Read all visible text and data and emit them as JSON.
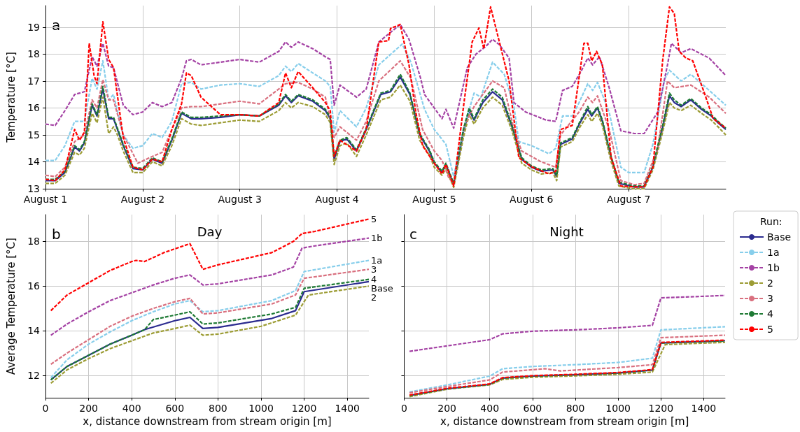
{
  "chart_data": [
    {
      "type": "line",
      "ylabel": "Temperature [°C]",
      "annotations": [
        "a"
      ],
      "marker": "none",
      "grid": true,
      "legend": false,
      "xlim": [
        "--08-01T00:00",
        "--08-08T00:00"
      ],
      "xticks": [
        {
          "value": "--08-01",
          "label": "August 1"
        },
        {
          "value": "--08-02",
          "label": "August 2"
        },
        {
          "value": "--08-03",
          "label": "August 3"
        },
        {
          "value": "--08-04",
          "label": "August 4"
        },
        {
          "value": "--08-05",
          "label": "August 5"
        },
        {
          "value": "--08-06",
          "label": "August 6"
        },
        {
          "value": "--08-07",
          "label": "August 7"
        }
      ],
      "ylim": [
        13,
        19.8
      ],
      "yticks": [
        13,
        14,
        15,
        16,
        17,
        18,
        19
      ],
      "series": [
        {
          "color": "#2b2b8f",
          "line_style": "solid",
          "x": [
            "--08-01T00:00",
            "--08-01T02:24",
            "--08-01T04:48",
            "--08-01T07:12",
            "--08-01T08:24",
            "--08-01T09:36",
            "--08-01T11:31",
            "--08-01T12:43",
            "--08-01T14:10",
            "--08-01T15:36",
            "--08-01T16:48",
            "--08-01T17:46",
            "--08-01T19:12",
            "--08-01T21:36",
            "--08-02T00:00",
            "--08-02T02:24",
            "--08-02T04:48",
            "--08-02T07:12",
            "--08-02T09:36",
            "--08-02T12:00",
            "--08-02T14:24",
            "--08-02T19:12",
            "--08-03T00:00",
            "--08-03T04:48",
            "--08-03T09:36",
            "--08-03T11:17",
            "--08-03T12:43",
            "--08-03T14:24",
            "--08-03T18:00",
            "--08-03T21:07",
            "--08-03T22:19",
            "--08-03T23:17",
            "--08-04T00:43",
            "--08-04T02:24",
            "--08-04T04:48",
            "--08-04T07:12",
            "--08-04T10:48",
            "--08-04T13:12",
            "--08-04T15:36",
            "--08-04T18:00",
            "--08-04T20:24",
            "--08-04T22:48",
            "--08-05T00:00",
            "--08-05T01:55",
            "--08-05T02:53",
            "--08-05T04:48",
            "--08-05T07:12",
            "--08-05T08:38",
            "--08-05T09:50",
            "--08-05T12:00",
            "--08-05T14:24",
            "--08-05T16:48",
            "--08-05T19:12",
            "--08-05T21:36",
            "--08-06T00:00",
            "--08-06T02:24",
            "--08-06T05:17",
            "--08-06T06:14",
            "--08-06T07:12",
            "--08-06T10:05",
            "--08-06T12:00",
            "--08-06T13:55",
            "--08-06T14:53",
            "--08-06T16:19",
            "--08-06T17:31",
            "--08-06T19:41",
            "--08-06T21:36",
            "--08-07T01:12",
            "--08-07T03:50",
            "--08-07T06:00",
            "--08-07T08:24",
            "--08-07T10:05",
            "--08-07T11:17",
            "--08-07T12:58",
            "--08-07T15:22",
            "--08-07T18:00",
            "--08-07T20:24",
            "--08-07T22:05",
            "--08-08T00:00"
          ],
          "values": [
            13.3,
            13.3,
            13.6,
            14.55,
            14.4,
            14.7,
            16.1,
            15.7,
            16.7,
            15.6,
            15.6,
            15.2,
            14.6,
            13.75,
            13.7,
            14.1,
            13.95,
            14.8,
            15.8,
            15.6,
            15.6,
            15.65,
            15.75,
            15.7,
            16.1,
            16.45,
            16.2,
            16.45,
            16.25,
            15.9,
            15.6,
            14.1,
            14.75,
            14.85,
            14.4,
            15.2,
            16.5,
            16.6,
            17.15,
            16.5,
            15.0,
            14.4,
            13.95,
            13.6,
            13.9,
            13.15,
            15.1,
            15.9,
            15.55,
            16.2,
            16.6,
            16.3,
            15.3,
            14.1,
            13.8,
            13.65,
            13.7,
            13.45,
            14.65,
            14.85,
            15.45,
            15.95,
            15.7,
            16.0,
            15.5,
            14.15,
            13.2,
            13.07,
            13.07,
            13.8,
            15.25,
            16.45,
            16.2,
            16.05,
            16.3,
            15.95,
            15.7,
            15.45,
            15.2
          ]
        },
        {
          "color": "#87ceeb",
          "line_style": "dashed",
          "x": [
            "--08-01T00:00",
            "--08-01T02:24",
            "--08-01T04:48",
            "--08-01T07:12",
            "--08-01T09:36",
            "--08-01T11:31",
            "--08-01T12:43",
            "--08-01T14:10",
            "--08-01T15:36",
            "--08-01T16:48",
            "--08-01T19:12",
            "--08-01T21:36",
            "--08-02T00:00",
            "--08-02T02:24",
            "--08-02T04:48",
            "--08-02T07:12",
            "--08-02T09:36",
            "--08-02T12:00",
            "--08-02T14:24",
            "--08-02T19:12",
            "--08-03T00:00",
            "--08-03T04:48",
            "--08-03T09:36",
            "--08-03T11:17",
            "--08-03T12:43",
            "--08-03T14:24",
            "--08-03T18:00",
            "--08-03T21:07",
            "--08-03T22:19",
            "--08-03T23:17",
            "--08-04T00:43",
            "--08-04T04:48",
            "--08-04T07:12",
            "--08-04T10:19",
            "--08-04T16:05",
            "--08-04T18:14",
            "--08-04T21:36",
            "--08-05T00:00",
            "--08-05T02:53",
            "--08-05T04:48",
            "--08-05T07:12",
            "--08-05T09:50",
            "--08-05T11:31",
            "--08-05T14:24",
            "--08-05T17:17",
            "--08-05T19:41",
            "--08-05T20:53",
            "--08-06T00:00",
            "--08-06T04:19",
            "--08-06T06:00",
            "--08-06T07:41",
            "--08-06T10:05",
            "--08-06T11:46",
            "--08-06T13:55",
            "--08-06T15:07",
            "--08-06T16:19",
            "--08-06T19:12",
            "--08-06T22:05",
            "--08-07T00:00",
            "--08-07T03:50",
            "--08-07T06:00",
            "--08-07T08:53",
            "--08-07T10:05",
            "--08-07T12:58",
            "--08-07T15:22",
            "--08-07T19:55",
            "--08-08T00:00"
          ],
          "values": [
            14.05,
            14.05,
            14.6,
            15.5,
            15.5,
            17.1,
            16.7,
            17.75,
            16.3,
            16.5,
            15.0,
            14.5,
            14.6,
            15.05,
            14.9,
            15.5,
            16.9,
            16.95,
            16.7,
            16.85,
            16.9,
            16.8,
            17.2,
            17.55,
            17.35,
            17.65,
            17.3,
            17.0,
            16.8,
            15.1,
            15.9,
            15.3,
            16.0,
            17.6,
            18.37,
            17.7,
            15.95,
            15.2,
            14.65,
            13.45,
            15.2,
            16.55,
            16.4,
            17.7,
            17.25,
            16.05,
            14.75,
            14.6,
            14.3,
            14.5,
            15.7,
            15.7,
            16.2,
            16.9,
            16.65,
            16.95,
            15.85,
            13.8,
            13.6,
            13.6,
            14.65,
            17.07,
            17.4,
            17.0,
            17.25,
            16.65,
            16.1
          ]
        },
        {
          "color": "#a442a4",
          "line_style": "dashed",
          "x": [
            "--08-01T00:00",
            "--08-01T02:24",
            "--08-01T04:48",
            "--08-01T07:12",
            "--08-01T09:36",
            "--08-01T11:31",
            "--08-01T12:43",
            "--08-01T14:10",
            "--08-01T15:36",
            "--08-01T16:48",
            "--08-01T19:12",
            "--08-01T21:36",
            "--08-02T00:00",
            "--08-02T02:24",
            "--08-02T04:48",
            "--08-02T07:12",
            "--08-02T09:36",
            "--08-02T10:48",
            "--08-02T12:00",
            "--08-02T14:24",
            "--08-02T19:12",
            "--08-03T00:00",
            "--08-03T04:48",
            "--08-03T09:36",
            "--08-03T11:17",
            "--08-03T12:43",
            "--08-03T14:24",
            "--08-03T18:00",
            "--08-03T21:07",
            "--08-03T22:19",
            "--08-03T23:17",
            "--08-04T00:43",
            "--08-04T04:48",
            "--08-04T07:12",
            "--08-04T10:19",
            "--08-04T15:36",
            "--08-04T17:46",
            "--08-04T20:38",
            "--08-04T21:36",
            "--08-05T00:00",
            "--08-05T01:55",
            "--08-05T02:53",
            "--08-05T04:48",
            "--08-05T08:10",
            "--08-05T10:19",
            "--08-05T12:43",
            "--08-05T14:24",
            "--08-05T16:05",
            "--08-05T18:29",
            "--08-05T19:41",
            "--08-05T22:34",
            "--08-06T03:36",
            "--08-06T06:00",
            "--08-06T07:41",
            "--08-06T10:05",
            "--08-06T12:14",
            "--08-06T13:55",
            "--08-06T15:07",
            "--08-06T16:48",
            "--08-06T19:12",
            "--08-06T22:05",
            "--08-07T01:26",
            "--08-07T03:50",
            "--08-07T07:12",
            "--08-07T09:36",
            "--08-07T10:34",
            "--08-07T12:58",
            "--08-07T15:22",
            "--08-07T19:55",
            "--08-08T00:00"
          ],
          "values": [
            15.4,
            15.35,
            15.9,
            16.5,
            16.6,
            17.9,
            17.55,
            18.4,
            17.55,
            17.5,
            16.1,
            15.75,
            15.85,
            16.2,
            16.05,
            16.2,
            17.1,
            17.75,
            17.8,
            17.6,
            17.7,
            17.8,
            17.7,
            18.1,
            18.45,
            18.25,
            18.45,
            18.2,
            17.9,
            17.8,
            16.1,
            16.85,
            16.4,
            16.7,
            18.45,
            19.1,
            18.55,
            17.1,
            16.5,
            16.0,
            15.6,
            15.95,
            15.25,
            17.5,
            18.0,
            18.28,
            18.55,
            18.35,
            17.85,
            16.2,
            15.85,
            15.55,
            15.5,
            16.65,
            16.8,
            17.35,
            17.85,
            17.6,
            17.9,
            16.75,
            15.15,
            15.05,
            15.05,
            15.85,
            17.6,
            18.4,
            18.05,
            18.2,
            17.85,
            17.2
          ]
        },
        {
          "color": "#9c9c34",
          "line_style": "dashed",
          "x": [
            "--08-01T00:00",
            "--08-01T02:24",
            "--08-01T04:48",
            "--08-01T07:12",
            "--08-01T08:24",
            "--08-01T09:36",
            "--08-01T11:31",
            "--08-01T12:43",
            "--08-01T14:10",
            "--08-01T15:36",
            "--08-01T16:48",
            "--08-01T17:46",
            "--08-01T19:12",
            "--08-01T21:36",
            "--08-02T00:00",
            "--08-02T02:24",
            "--08-02T04:48",
            "--08-02T07:12",
            "--08-02T09:36",
            "--08-02T12:00",
            "--08-02T14:24",
            "--08-02T19:12",
            "--08-03T00:00",
            "--08-03T04:48",
            "--08-03T09:36",
            "--08-03T11:17",
            "--08-03T12:43",
            "--08-03T14:24",
            "--08-03T18:00",
            "--08-03T21:07",
            "--08-03T22:19",
            "--08-03T23:17",
            "--08-04T00:43",
            "--08-04T02:24",
            "--08-04T04:48",
            "--08-04T07:12",
            "--08-04T10:48",
            "--08-04T13:12",
            "--08-04T15:36",
            "--08-04T18:00",
            "--08-04T20:24",
            "--08-04T22:48",
            "--08-05T00:00",
            "--08-05T01:55",
            "--08-05T02:53",
            "--08-05T04:48",
            "--08-05T07:12",
            "--08-05T08:38",
            "--08-05T09:50",
            "--08-05T12:00",
            "--08-05T14:24",
            "--08-05T16:48",
            "--08-05T19:12",
            "--08-05T21:36",
            "--08-06T00:00",
            "--08-06T02:24",
            "--08-06T05:17",
            "--08-06T06:14",
            "--08-06T07:12",
            "--08-06T10:05",
            "--08-06T12:00",
            "--08-06T13:55",
            "--08-06T14:53",
            "--08-06T16:19",
            "--08-06T17:31",
            "--08-06T19:41",
            "--08-06T21:36",
            "--08-07T01:12",
            "--08-07T03:50",
            "--08-07T06:00",
            "--08-07T08:24",
            "--08-07T10:05",
            "--08-07T11:17",
            "--08-07T12:58",
            "--08-07T15:22",
            "--08-07T18:00",
            "--08-07T20:24",
            "--08-07T22:05",
            "--08-08T00:00"
          ],
          "values": [
            13.2,
            13.2,
            13.5,
            14.35,
            14.25,
            14.5,
            15.8,
            15.45,
            16.4,
            15.05,
            15.3,
            15.0,
            14.4,
            13.6,
            13.6,
            14.0,
            13.85,
            14.6,
            15.6,
            15.4,
            15.35,
            15.45,
            15.55,
            15.5,
            15.9,
            16.2,
            16.0,
            16.2,
            16.05,
            15.75,
            15.45,
            13.9,
            14.6,
            14.7,
            14.2,
            15.0,
            16.3,
            16.4,
            16.85,
            16.25,
            14.8,
            14.25,
            13.8,
            13.5,
            13.75,
            13.05,
            14.9,
            15.75,
            15.4,
            16.0,
            16.4,
            16.1,
            15.15,
            13.95,
            13.7,
            13.55,
            13.6,
            13.3,
            14.55,
            14.75,
            15.3,
            15.75,
            15.5,
            15.8,
            15.35,
            14.0,
            13.1,
            13.0,
            13.0,
            13.7,
            15.1,
            16.2,
            16.0,
            15.9,
            16.1,
            15.8,
            15.55,
            15.3,
            15.0
          ]
        },
        {
          "color": "#d9707f",
          "line_style": "dashed",
          "x": [
            "--08-01T00:00",
            "--08-01T02:24",
            "--08-01T04:48",
            "--08-01T07:12",
            "--08-01T09:36",
            "--08-01T11:31",
            "--08-01T12:43",
            "--08-01T14:10",
            "--08-01T15:36",
            "--08-01T16:48",
            "--08-01T19:12",
            "--08-01T22:48",
            "--08-02T02:24",
            "--08-02T04:48",
            "--08-02T07:12",
            "--08-02T09:36",
            "--08-02T12:00",
            "--08-02T14:24",
            "--08-03T00:00",
            "--08-03T04:48",
            "--08-03T09:36",
            "--08-03T11:17",
            "--08-03T14:24",
            "--08-03T18:00",
            "--08-03T21:07",
            "--08-03T23:17",
            "--08-04T00:43",
            "--08-04T04:48",
            "--08-04T07:12",
            "--08-04T10:19",
            "--08-04T15:36",
            "--08-04T18:14",
            "--08-04T21:07",
            "--08-05T00:00",
            "--08-05T01:55",
            "--08-05T03:36",
            "--08-05T04:48",
            "--08-05T07:26",
            "--08-05T09:50",
            "--08-05T14:24",
            "--08-05T17:17",
            "--08-05T19:41",
            "--08-05T21:36",
            "--08-06T02:24",
            "--08-06T06:00",
            "--08-06T07:12",
            "--08-06T11:46",
            "--08-06T13:55",
            "--08-06T15:07",
            "--08-06T16:19",
            "--08-06T19:12",
            "--08-06T22:05",
            "--08-07T01:26",
            "--08-07T03:50",
            "--08-07T07:12",
            "--08-07T09:36",
            "--08-07T11:17",
            "--08-07T15:22",
            "--08-07T19:55",
            "--08-08T00:00"
          ],
          "values": [
            13.5,
            13.45,
            13.8,
            14.75,
            15.0,
            16.3,
            16.0,
            17.05,
            16.3,
            16.3,
            15.0,
            13.95,
            14.2,
            14.35,
            15.2,
            16.0,
            16.05,
            16.05,
            16.25,
            16.15,
            16.7,
            16.9,
            16.95,
            16.7,
            16.4,
            14.9,
            15.3,
            14.8,
            15.5,
            17.0,
            17.75,
            17.1,
            15.2,
            14.4,
            14.05,
            13.4,
            13.2,
            15.35,
            16.05,
            17.0,
            16.75,
            15.2,
            14.4,
            14.0,
            13.8,
            15.0,
            15.85,
            16.4,
            16.2,
            16.45,
            15.2,
            13.3,
            13.15,
            13.2,
            14.5,
            17.0,
            16.75,
            16.85,
            16.4,
            15.8
          ]
        },
        {
          "color": "#1e7a34",
          "line_style": "dashed",
          "x": [
            "--08-01T00:00",
            "--08-01T02:24",
            "--08-01T04:48",
            "--08-01T07:12",
            "--08-01T08:24",
            "--08-01T09:36",
            "--08-01T11:31",
            "--08-01T12:43",
            "--08-01T14:10",
            "--08-01T15:36",
            "--08-01T16:48",
            "--08-01T17:46",
            "--08-01T19:12",
            "--08-01T21:36",
            "--08-02T00:00",
            "--08-02T02:24",
            "--08-02T04:48",
            "--08-02T07:12",
            "--08-02T09:36",
            "--08-02T12:00",
            "--08-02T14:24",
            "--08-02T19:12",
            "--08-03T00:00",
            "--08-03T04:48",
            "--08-03T09:36",
            "--08-03T11:17",
            "--08-03T12:43",
            "--08-03T14:24",
            "--08-03T18:00",
            "--08-03T21:07",
            "--08-03T22:19",
            "--08-03T23:17",
            "--08-04T00:43",
            "--08-04T02:24",
            "--08-04T04:48",
            "--08-04T07:12",
            "--08-04T10:48",
            "--08-04T13:12",
            "--08-04T15:36",
            "--08-04T18:00",
            "--08-04T20:24",
            "--08-04T22:48",
            "--08-05T00:00",
            "--08-05T01:55",
            "--08-05T02:53",
            "--08-05T04:48",
            "--08-05T07:12",
            "--08-05T08:38",
            "--08-05T09:50",
            "--08-05T12:00",
            "--08-05T14:24",
            "--08-05T16:48",
            "--08-05T19:12",
            "--08-05T21:36",
            "--08-06T00:00",
            "--08-06T02:24",
            "--08-06T05:17",
            "--08-06T06:14",
            "--08-06T07:12",
            "--08-06T10:05",
            "--08-06T12:00",
            "--08-06T13:55",
            "--08-06T14:53",
            "--08-06T16:19",
            "--08-06T17:31",
            "--08-06T19:41",
            "--08-06T21:36",
            "--08-07T01:12",
            "--08-07T03:50",
            "--08-07T06:00",
            "--08-07T08:24",
            "--08-07T10:05",
            "--08-07T11:17",
            "--08-07T12:58",
            "--08-07T15:22",
            "--08-07T18:00",
            "--08-07T20:24",
            "--08-07T22:05",
            "--08-08T00:00"
          ],
          "values": [
            13.35,
            13.35,
            13.65,
            14.6,
            14.45,
            14.75,
            16.15,
            15.75,
            16.8,
            15.65,
            15.65,
            15.25,
            14.65,
            13.8,
            13.75,
            14.15,
            14.0,
            14.85,
            15.85,
            15.65,
            15.65,
            15.7,
            15.75,
            15.7,
            16.15,
            16.5,
            16.25,
            16.5,
            16.3,
            15.95,
            15.65,
            14.2,
            14.8,
            14.9,
            14.45,
            15.25,
            16.55,
            16.65,
            17.25,
            16.55,
            15.05,
            14.45,
            14.0,
            13.65,
            13.95,
            13.2,
            15.2,
            16.0,
            15.6,
            16.3,
            16.7,
            16.4,
            15.35,
            14.15,
            13.85,
            13.7,
            13.75,
            13.5,
            14.7,
            14.9,
            15.5,
            16.05,
            15.75,
            16.05,
            15.55,
            14.2,
            13.25,
            13.1,
            13.1,
            13.85,
            15.35,
            16.55,
            16.3,
            16.1,
            16.35,
            16.0,
            15.75,
            15.5,
            15.25
          ]
        },
        {
          "color": "#ff0000",
          "line_style": "dashed",
          "x": [
            "--08-01T00:00",
            "--08-01T02:24",
            "--08-01T04:48",
            "--08-01T07:12",
            "--08-01T08:24",
            "--08-01T09:36",
            "--08-01T10:48",
            "--08-01T12:00",
            "--08-01T12:43",
            "--08-01T14:10",
            "--08-01T15:36",
            "--08-01T16:48",
            "--08-01T19:12",
            "--08-01T21:36",
            "--08-02T00:00",
            "--08-02T02:24",
            "--08-02T04:48",
            "--08-02T07:12",
            "--08-02T09:36",
            "--08-02T10:48",
            "--08-02T12:00",
            "--08-02T14:24",
            "--08-02T19:12",
            "--08-03T00:00",
            "--08-03T04:48",
            "--08-03T09:36",
            "--08-03T11:17",
            "--08-03T12:43",
            "--08-03T14:24",
            "--08-03T18:00",
            "--08-03T21:07",
            "--08-03T22:19",
            "--08-03T23:17",
            "--08-04T00:43",
            "--08-04T04:48",
            "--08-04T07:12",
            "--08-04T10:19",
            "--08-04T12:43",
            "--08-04T13:12",
            "--08-04T15:36",
            "--08-04T17:46",
            "--08-04T19:26",
            "--08-04T21:07",
            "--08-05T00:00",
            "--08-05T01:55",
            "--08-05T02:53",
            "--08-05T04:48",
            "--08-05T07:26",
            "--08-05T09:22",
            "--08-05T11:02",
            "--08-05T12:14",
            "--08-05T13:55",
            "--08-05T16:05",
            "--08-05T18:29",
            "--08-05T20:53",
            "--08-06T00:14",
            "--08-06T04:19",
            "--08-06T06:00",
            "--08-06T07:12",
            "--08-06T10:05",
            "--08-06T12:58",
            "--08-06T13:55",
            "--08-06T14:53",
            "--08-06T16:05",
            "--08-06T17:31",
            "--08-06T19:41",
            "--08-06T22:05",
            "--08-07T01:26",
            "--08-07T03:50",
            "--08-07T06:00",
            "--08-07T08:24",
            "--08-07T10:05",
            "--08-07T11:17",
            "--08-07T12:29",
            "--08-07T14:10",
            "--08-07T15:50",
            "--08-07T18:43",
            "--08-07T20:53",
            "--08-08T00:00"
          ],
          "values": [
            13.35,
            13.3,
            13.7,
            15.2,
            14.8,
            15.1,
            18.4,
            17.2,
            16.9,
            19.2,
            17.8,
            17.5,
            14.9,
            13.8,
            13.7,
            14.1,
            14.0,
            15.2,
            16.15,
            17.3,
            17.2,
            16.4,
            15.75,
            15.75,
            15.7,
            16.2,
            17.3,
            16.75,
            17.35,
            16.75,
            16.2,
            15.9,
            14.2,
            14.8,
            14.4,
            15.2,
            18.45,
            18.5,
            18.95,
            19.1,
            17.6,
            15.85,
            14.6,
            13.95,
            13.55,
            13.9,
            13.1,
            16.3,
            18.45,
            18.97,
            18.2,
            19.75,
            18.45,
            17.0,
            14.15,
            13.8,
            13.55,
            13.65,
            15.2,
            15.35,
            18.4,
            18.4,
            17.75,
            18.1,
            17.6,
            14.15,
            13.1,
            13.07,
            13.07,
            13.8,
            17.75,
            19.75,
            19.5,
            18.1,
            17.85,
            17.75,
            16.55,
            15.6,
            15.25
          ]
        }
      ]
    },
    {
      "type": "line",
      "title": "Day",
      "xlabel": "x, distance downstream from stream origin [m]",
      "ylabel": "Average Temperature [°C]",
      "annotations": [
        "b"
      ],
      "marker": "none",
      "grid": true,
      "legend": false,
      "xlim": [
        0,
        1500
      ],
      "xticks": [
        0,
        200,
        400,
        600,
        800,
        1000,
        1200,
        1400
      ],
      "ylim": [
        11,
        19.2
      ],
      "yticks": [
        12,
        14,
        16,
        18
      ],
      "series": [
        {
          "name": "Base",
          "color": "#2b2b8f",
          "line_style": "solid",
          "x": [
            25,
            100,
            200,
            300,
            400,
            460,
            600,
            670,
            730,
            800,
            1050,
            1160,
            1200,
            1500
          ],
          "values": [
            11.8,
            12.4,
            12.9,
            13.4,
            13.8,
            14.05,
            14.45,
            14.6,
            14.1,
            14.15,
            14.55,
            14.9,
            15.75,
            16.2
          ]
        },
        {
          "name": "1a",
          "color": "#87ceeb",
          "line_style": "dashed",
          "x": [
            25,
            100,
            200,
            300,
            400,
            500,
            600,
            670,
            730,
            800,
            1050,
            1160,
            1200,
            1500
          ],
          "values": [
            11.9,
            12.7,
            13.4,
            13.95,
            14.45,
            14.85,
            15.2,
            15.35,
            14.85,
            14.9,
            15.35,
            15.8,
            16.65,
            17.15
          ]
        },
        {
          "name": "1b",
          "color": "#a442a4",
          "line_style": "dashed",
          "x": [
            25,
            100,
            200,
            300,
            400,
            500,
            600,
            670,
            730,
            800,
            1050,
            1150,
            1190,
            1250,
            1500
          ],
          "values": [
            13.8,
            14.3,
            14.85,
            15.35,
            15.7,
            16.05,
            16.35,
            16.5,
            16.05,
            16.1,
            16.5,
            16.85,
            17.7,
            17.8,
            18.15
          ]
        },
        {
          "name": "2",
          "color": "#9c9c34",
          "line_style": "dashed",
          "x": [
            25,
            100,
            200,
            300,
            400,
            500,
            600,
            670,
            730,
            800,
            1000,
            1160,
            1220,
            1500
          ],
          "values": [
            11.65,
            12.25,
            12.75,
            13.2,
            13.55,
            13.9,
            14.1,
            14.25,
            13.8,
            13.85,
            14.2,
            14.7,
            15.6,
            16.0
          ]
        },
        {
          "name": "3",
          "color": "#d9707f",
          "line_style": "dashed",
          "x": [
            25,
            100,
            200,
            300,
            400,
            500,
            600,
            670,
            730,
            800,
            1050,
            1160,
            1200,
            1500
          ],
          "values": [
            12.5,
            13.0,
            13.6,
            14.2,
            14.65,
            15.0,
            15.3,
            15.45,
            14.75,
            14.8,
            15.2,
            15.6,
            16.35,
            16.75
          ]
        },
        {
          "name": "4",
          "color": "#1e7a34",
          "line_style": "dashed",
          "x": [
            25,
            100,
            200,
            300,
            400,
            460,
            500,
            600,
            670,
            730,
            800,
            1050,
            1160,
            1200,
            1500
          ],
          "values": [
            11.8,
            12.4,
            12.9,
            13.4,
            13.8,
            14.05,
            14.5,
            14.7,
            14.85,
            14.3,
            14.35,
            14.75,
            15.05,
            15.9,
            16.3
          ]
        },
        {
          "name": "5",
          "color": "#ff0000",
          "line_style": "dashed",
          "x": [
            25,
            100,
            200,
            300,
            400,
            420,
            460,
            550,
            670,
            730,
            800,
            1050,
            1150,
            1190,
            1250,
            1500
          ],
          "values": [
            14.9,
            15.6,
            16.15,
            16.7,
            17.1,
            17.15,
            17.1,
            17.5,
            17.9,
            16.75,
            16.95,
            17.5,
            18.0,
            18.35,
            18.45,
            19.0
          ]
        }
      ]
    },
    {
      "type": "line",
      "title": "Night",
      "xlabel": "x, distance downstream from stream origin [m]",
      "annotations": [
        "c"
      ],
      "marker": "none",
      "grid": true,
      "legend": "right",
      "legend_title": "Run:",
      "tick_labels": "x",
      "xlim": [
        0,
        1500
      ],
      "xticks": [
        0,
        200,
        400,
        600,
        800,
        1000,
        1200,
        1400
      ],
      "ylim": [
        11,
        19.2
      ],
      "yticks": [
        12,
        14,
        16,
        18
      ],
      "series": [
        {
          "name": "Base",
          "color": "#2b2b8f",
          "line_style": "solid",
          "x": [
            25,
            200,
            400,
            460,
            600,
            800,
            1000,
            1160,
            1200,
            1500
          ],
          "values": [
            11.1,
            11.4,
            11.6,
            11.88,
            11.97,
            12.03,
            12.11,
            12.24,
            13.45,
            13.55
          ]
        },
        {
          "name": "1a",
          "color": "#87ceeb",
          "line_style": "dashed",
          "x": [
            25,
            200,
            400,
            460,
            600,
            800,
            1000,
            1160,
            1200,
            1500
          ],
          "values": [
            11.26,
            11.57,
            11.97,
            12.3,
            12.4,
            12.48,
            12.58,
            12.77,
            14.04,
            14.18
          ]
        },
        {
          "name": "1b",
          "color": "#a442a4",
          "line_style": "dashed",
          "x": [
            25,
            400,
            460,
            600,
            800,
            1000,
            1160,
            1200,
            1500
          ],
          "values": [
            13.08,
            13.6,
            13.86,
            13.98,
            14.04,
            14.13,
            14.24,
            15.47,
            15.58
          ]
        },
        {
          "name": "2",
          "color": "#9c9c34",
          "line_style": "dashed",
          "x": [
            25,
            200,
            400,
            460,
            600,
            800,
            1000,
            1160,
            1220,
            1500
          ],
          "values": [
            11.05,
            11.38,
            11.58,
            11.82,
            11.92,
            11.98,
            12.05,
            12.15,
            13.38,
            13.48
          ]
        },
        {
          "name": "3",
          "color": "#d9707f",
          "line_style": "dashed",
          "x": [
            25,
            200,
            400,
            460,
            660,
            730,
            1000,
            1160,
            1200,
            1500
          ],
          "values": [
            11.22,
            11.5,
            11.8,
            12.15,
            12.3,
            12.2,
            12.35,
            12.48,
            13.69,
            13.8
          ]
        },
        {
          "name": "4",
          "color": "#1e7a34",
          "line_style": "dashed",
          "x": [
            25,
            200,
            400,
            460,
            600,
            800,
            1000,
            1160,
            1200,
            1500
          ],
          "values": [
            11.1,
            11.4,
            11.6,
            11.88,
            11.97,
            12.03,
            12.11,
            12.24,
            13.45,
            13.55
          ]
        },
        {
          "name": "5",
          "color": "#ff0000",
          "line_style": "dashed",
          "x": [
            25,
            200,
            400,
            460,
            600,
            800,
            1000,
            1160,
            1200,
            1500
          ],
          "values": [
            11.12,
            11.42,
            11.62,
            11.9,
            11.99,
            12.05,
            12.13,
            12.26,
            13.48,
            13.58
          ]
        }
      ]
    }
  ]
}
